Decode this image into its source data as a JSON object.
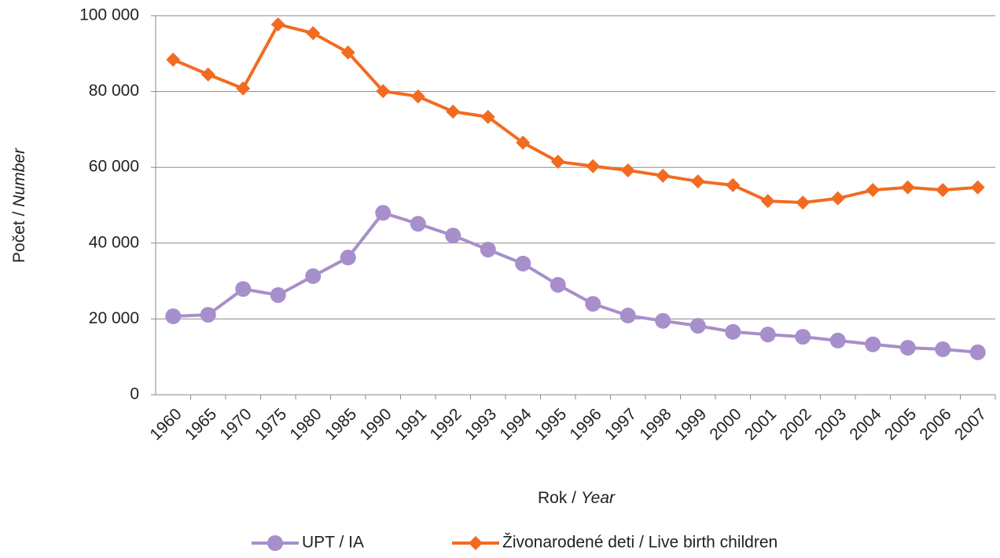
{
  "chart_data": {
    "type": "line",
    "ylabel": [
      "Počet / ",
      "Number"
    ],
    "xlabel": [
      "Rok / ",
      "Year"
    ],
    "categories": [
      "1960",
      "1965",
      "1970",
      "1975",
      "1980",
      "1985",
      "1990",
      "1991",
      "1992",
      "1993",
      "1994",
      "1995",
      "1996",
      "1997",
      "1998",
      "1999",
      "2000",
      "2001",
      "2002",
      "2003",
      "2004",
      "2005",
      "2006",
      "2007"
    ],
    "series": [
      {
        "name": "UPT / IA",
        "color": "#a68fca",
        "marker": "circle",
        "values": [
          20700,
          21100,
          27900,
          26300,
          31300,
          36200,
          48000,
          45100,
          42000,
          38300,
          34600,
          29000,
          24000,
          20900,
          19500,
          18200,
          16600,
          15900,
          15300,
          14300,
          13300,
          12400,
          12000,
          11200
        ]
      },
      {
        "name": "Živonarodené deti / Live birth children",
        "color": "#f26b21",
        "marker": "diamond",
        "values": [
          88400,
          84500,
          80800,
          97700,
          95400,
          90300,
          80100,
          78700,
          74700,
          73300,
          66500,
          61500,
          60300,
          59200,
          57800,
          56300,
          55300,
          51100,
          50700,
          51800,
          54000,
          54700,
          54000,
          54700
        ]
      }
    ],
    "ylim": [
      0,
      100000
    ],
    "yticks": [
      0,
      {
        "value": 20000,
        "label": "20 000"
      },
      {
        "value": 40000,
        "label": "40 000"
      },
      {
        "value": 60000,
        "label": "60 000"
      },
      {
        "value": 80000,
        "label": "80 000"
      },
      {
        "value": 100000,
        "label": "100 000"
      }
    ],
    "grid": true,
    "legend": "bottom"
  }
}
